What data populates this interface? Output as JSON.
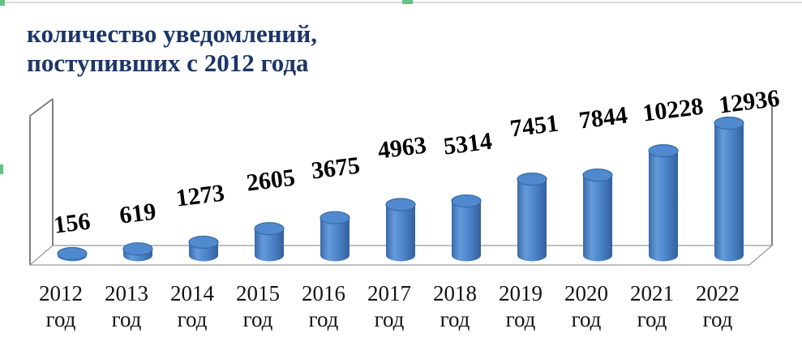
{
  "page": {
    "background": "#ffffff",
    "top_border_color": "#d8d8d8"
  },
  "accents": {
    "color": "#5ec383"
  },
  "title": {
    "text": "количество уведомлений,\nпоступивших с  2012 года",
    "color": "#1b3667"
  },
  "chart_data": {
    "type": "bar",
    "subtype": "3d-cylinder",
    "title": "количество уведомлений, поступивших с 2012 года",
    "categories": [
      "2012 год",
      "2013 год",
      "2014 год",
      "2015 год",
      "2016 год",
      "2017 год",
      "2018 год",
      "2019 год",
      "2020 год",
      "2021 год",
      "2022 год"
    ],
    "values": [
      156,
      619,
      1273,
      2605,
      3675,
      4963,
      5314,
      7451,
      7844,
      10228,
      12936
    ],
    "xlabel": "",
    "ylabel": "",
    "ylim": [
      0,
      12936
    ],
    "gridlines": false,
    "legend": "none",
    "data_labels_shown": true,
    "bar_color": "#4a80c4",
    "bar_color_dark": "#33609d",
    "bar_color_light": "#649bda",
    "bar_top_color": "#5189ce",
    "bar_top_stroke": "#366aa7",
    "frame_color": "#808080",
    "floor_line_color": "#9b9b9b",
    "label_color": "#000000",
    "axis_label_color": "#141414"
  }
}
